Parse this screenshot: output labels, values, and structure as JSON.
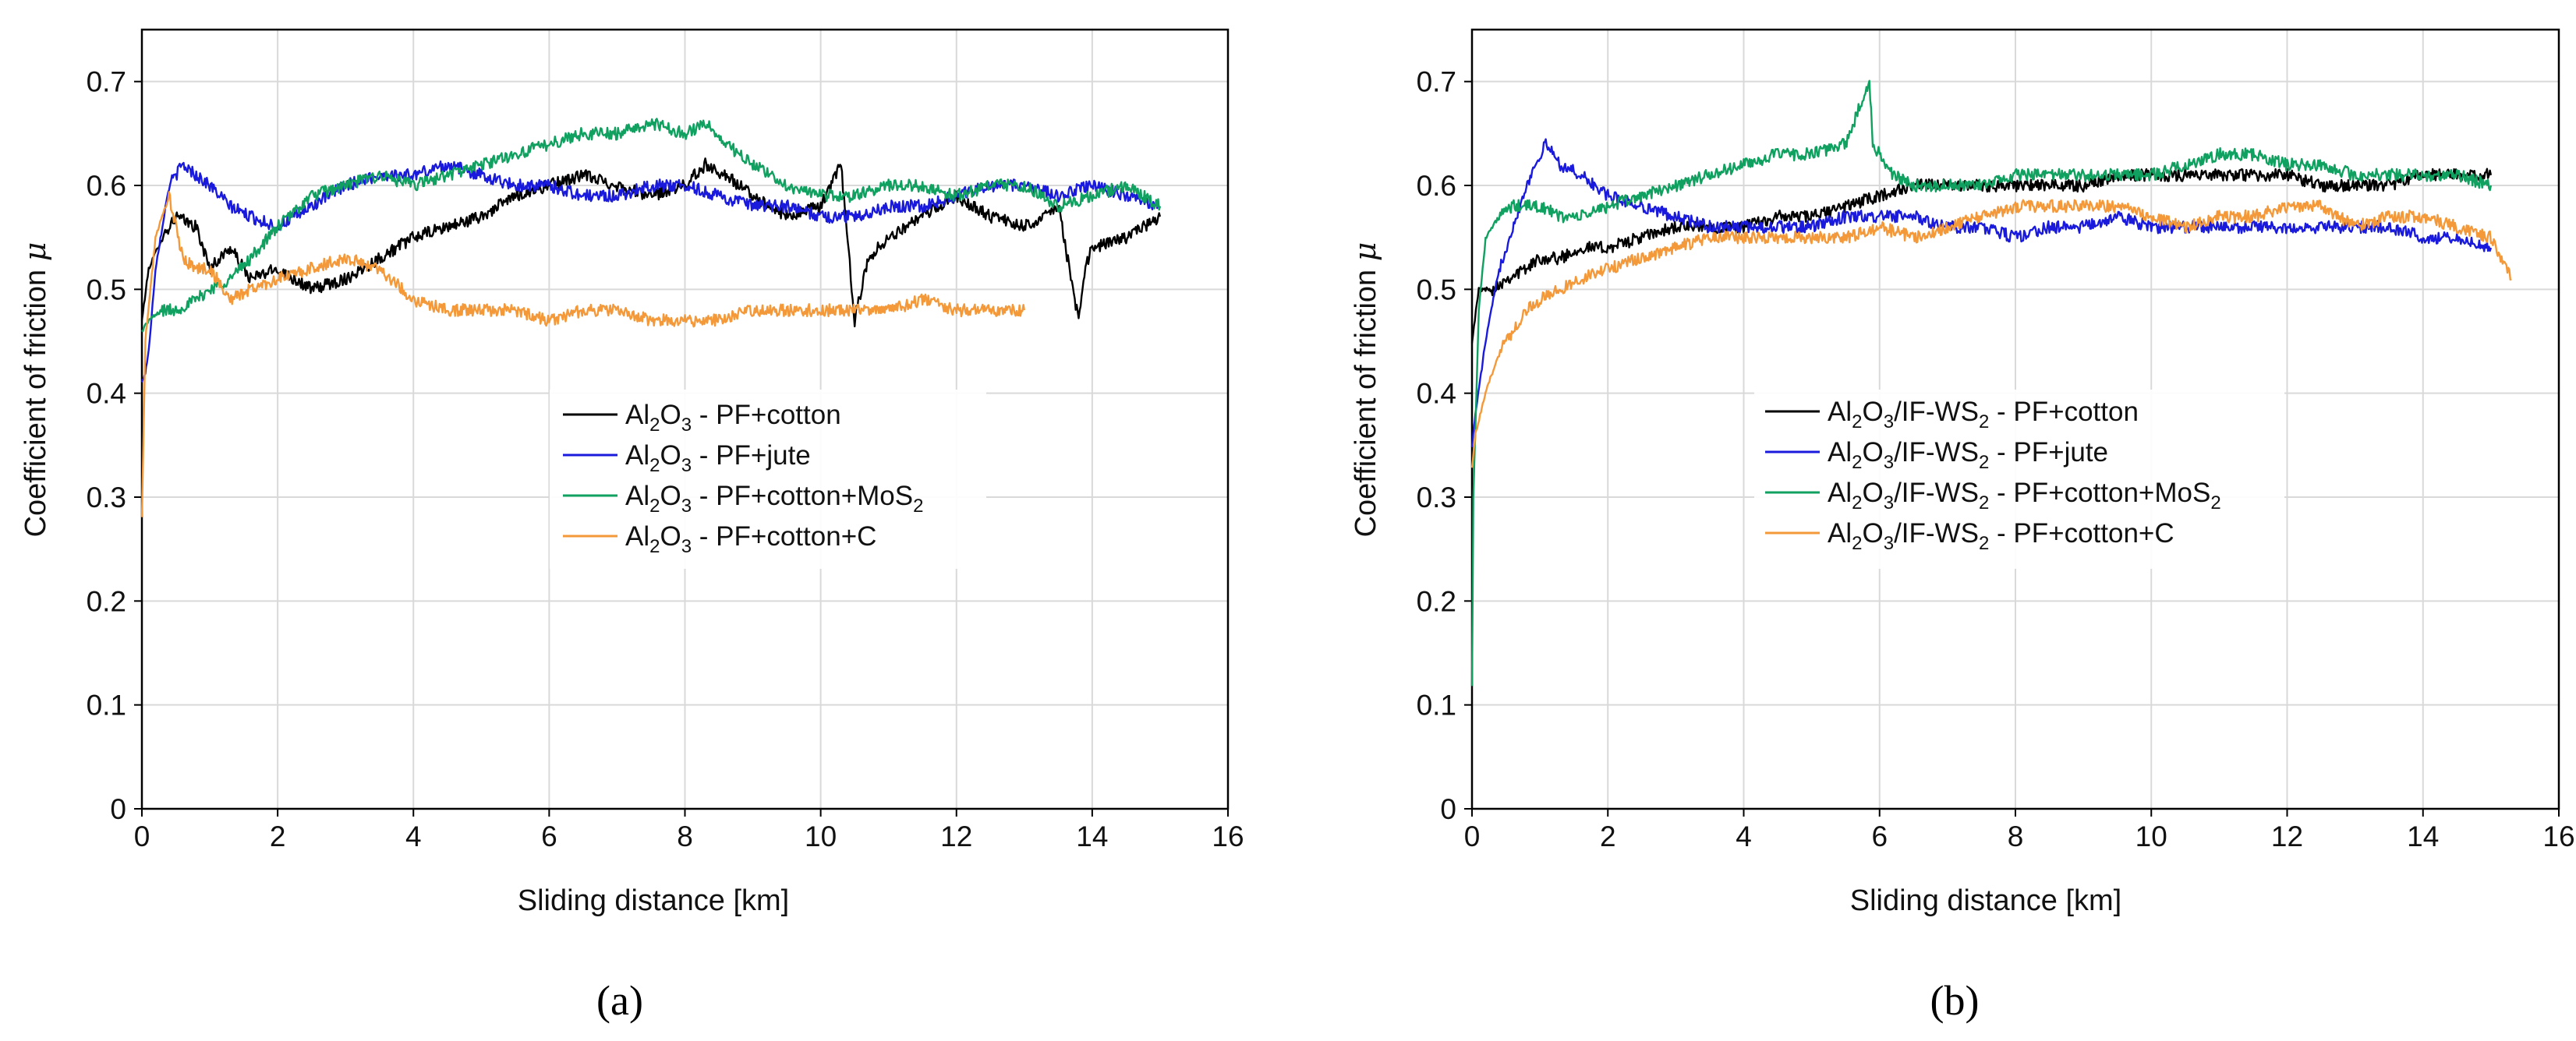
{
  "chart_data": [
    {
      "type": "line",
      "panel_label": "(a)",
      "xlabel": "Sliding distance [km]",
      "ylabel": "Coefficient of friction μ",
      "xlim": [
        0,
        16
      ],
      "ylim": [
        0,
        0.75
      ],
      "xticks": [
        "0",
        "2",
        "4",
        "6",
        "8",
        "10",
        "12",
        "14",
        "16"
      ],
      "yticks": [
        "0",
        "0.1",
        "0.2",
        "0.3",
        "0.4",
        "0.5",
        "0.6",
        "0.7"
      ],
      "grid": true,
      "legend_position": "center",
      "series": [
        {
          "name": "Al2O3 - PF+cotton",
          "color": "#000000",
          "x": [
            0,
            0.1,
            0.3,
            0.5,
            0.8,
            1.0,
            1.3,
            1.6,
            2.0,
            2.5,
            3.0,
            3.5,
            4.0,
            4.5,
            5.0,
            5.5,
            6.0,
            6.5,
            7.0,
            7.5,
            8.0,
            8.3,
            8.6,
            9.0,
            9.5,
            10.0,
            10.3,
            10.5,
            10.7,
            11.0,
            11.5,
            12.0,
            12.5,
            13.0,
            13.5,
            13.8,
            13.9,
            14.0,
            14.5,
            15.0
          ],
          "y": [
            0.47,
            0.52,
            0.55,
            0.57,
            0.56,
            0.52,
            0.54,
            0.51,
            0.52,
            0.5,
            0.51,
            0.53,
            0.55,
            0.56,
            0.57,
            0.59,
            0.6,
            0.61,
            0.6,
            0.59,
            0.6,
            0.62,
            0.61,
            0.59,
            0.57,
            0.58,
            0.62,
            0.47,
            0.53,
            0.55,
            0.57,
            0.59,
            0.57,
            0.56,
            0.58,
            0.47,
            0.52,
            0.54,
            0.55,
            0.57
          ]
        },
        {
          "name": "Al2O3 - PF+jute",
          "color": "#1a1adc",
          "x": [
            0,
            0.05,
            0.1,
            0.2,
            0.4,
            0.6,
            0.8,
            1.0,
            1.3,
            1.6,
            2.0,
            2.5,
            3.0,
            3.5,
            4.0,
            4.5,
            5.0,
            5.5,
            6.0,
            6.5,
            7.0,
            7.5,
            8.0,
            8.5,
            9.0,
            9.5,
            10.0,
            10.5,
            11.0,
            11.5,
            12.0,
            12.5,
            13.0,
            13.5,
            14.0,
            14.5,
            15.0
          ],
          "y": [
            0.41,
            0.42,
            0.44,
            0.52,
            0.6,
            0.62,
            0.61,
            0.6,
            0.58,
            0.57,
            0.56,
            0.58,
            0.6,
            0.61,
            0.61,
            0.62,
            0.61,
            0.6,
            0.6,
            0.59,
            0.59,
            0.6,
            0.6,
            0.59,
            0.58,
            0.58,
            0.57,
            0.57,
            0.58,
            0.58,
            0.59,
            0.6,
            0.6,
            0.59,
            0.6,
            0.59,
            0.58
          ]
        },
        {
          "name": "Al2O3 - PF+cotton+MoS2",
          "color": "#10a060",
          "x": [
            0,
            0.1,
            0.3,
            0.5,
            0.8,
            1.0,
            1.3,
            1.6,
            2.0,
            2.5,
            3.0,
            3.5,
            4.0,
            4.5,
            5.0,
            5.5,
            6.0,
            6.5,
            7.0,
            7.5,
            8.0,
            8.3,
            8.6,
            9.0,
            9.5,
            10.0,
            10.5,
            11.0,
            11.5,
            12.0,
            12.5,
            13.0,
            13.5,
            14.0,
            14.5,
            15.0
          ],
          "y": [
            0.46,
            0.47,
            0.48,
            0.48,
            0.49,
            0.5,
            0.51,
            0.53,
            0.56,
            0.59,
            0.6,
            0.61,
            0.6,
            0.61,
            0.62,
            0.63,
            0.64,
            0.65,
            0.65,
            0.66,
            0.65,
            0.66,
            0.64,
            0.62,
            0.6,
            0.59,
            0.59,
            0.6,
            0.6,
            0.59,
            0.6,
            0.6,
            0.58,
            0.59,
            0.6,
            0.58
          ]
        },
        {
          "name": "Al2O3 - PF+cotton+C",
          "color": "#f4993a",
          "x": [
            0,
            0.05,
            0.2,
            0.4,
            0.6,
            0.8,
            1.0,
            1.3,
            1.6,
            2.0,
            2.5,
            3.0,
            3.5,
            4.0,
            4.5,
            5.0,
            5.5,
            6.0,
            6.5,
            7.0,
            7.5,
            8.0,
            8.5,
            9.0,
            9.5,
            10.0,
            10.5,
            11.0,
            11.5,
            12.0,
            12.5,
            13.0
          ],
          "y": [
            0.28,
            0.45,
            0.55,
            0.59,
            0.53,
            0.52,
            0.52,
            0.49,
            0.5,
            0.51,
            0.52,
            0.53,
            0.52,
            0.49,
            0.48,
            0.48,
            0.48,
            0.47,
            0.48,
            0.48,
            0.47,
            0.47,
            0.47,
            0.48,
            0.48,
            0.48,
            0.48,
            0.48,
            0.49,
            0.48,
            0.48,
            0.48
          ]
        }
      ]
    },
    {
      "type": "line",
      "panel_label": "(b)",
      "xlabel": "Sliding distance [km]",
      "ylabel": "Coefficient of friction μ",
      "xlim": [
        0,
        16
      ],
      "ylim": [
        0,
        0.75
      ],
      "xticks": [
        "0",
        "2",
        "4",
        "6",
        "8",
        "10",
        "12",
        "14",
        "16"
      ],
      "yticks": [
        "0",
        "0.1",
        "0.2",
        "0.3",
        "0.4",
        "0.5",
        "0.6",
        "0.7"
      ],
      "grid": true,
      "legend_position": "center",
      "series": [
        {
          "name": "Al2O3/IF-WS2 - PF+cotton",
          "color": "#000000",
          "x": [
            0,
            0.1,
            0.3,
            0.5,
            0.8,
            1.0,
            1.3,
            1.6,
            2.0,
            2.5,
            3.0,
            3.5,
            4.0,
            4.5,
            5.0,
            5.5,
            6.0,
            6.5,
            7.0,
            7.5,
            8.0,
            8.5,
            9.0,
            9.5,
            10.0,
            10.5,
            11.0,
            11.5,
            12.0,
            12.5,
            13.0,
            13.5,
            14.0,
            14.5,
            15.0
          ],
          "y": [
            0.45,
            0.5,
            0.5,
            0.51,
            0.52,
            0.53,
            0.53,
            0.54,
            0.54,
            0.55,
            0.56,
            0.56,
            0.56,
            0.57,
            0.57,
            0.58,
            0.59,
            0.6,
            0.6,
            0.6,
            0.6,
            0.6,
            0.6,
            0.61,
            0.61,
            0.61,
            0.61,
            0.61,
            0.61,
            0.6,
            0.6,
            0.6,
            0.61,
            0.61,
            0.61
          ]
        },
        {
          "name": "Al2O3/IF-WS2 - PF+jute",
          "color": "#1a1adc",
          "x": [
            0,
            0.05,
            0.2,
            0.4,
            0.6,
            0.8,
            1.0,
            1.1,
            1.3,
            1.6,
            2.0,
            2.5,
            3.0,
            3.5,
            4.0,
            4.5,
            5.0,
            5.5,
            6.0,
            6.5,
            7.0,
            7.5,
            8.0,
            8.5,
            9.0,
            9.5,
            10.0,
            10.5,
            11.0,
            11.5,
            12.0,
            12.5,
            13.0,
            13.5,
            14.0,
            14.5,
            15.0
          ],
          "y": [
            0.35,
            0.38,
            0.45,
            0.52,
            0.56,
            0.6,
            0.63,
            0.64,
            0.62,
            0.61,
            0.59,
            0.58,
            0.57,
            0.56,
            0.56,
            0.56,
            0.56,
            0.57,
            0.57,
            0.57,
            0.56,
            0.56,
            0.55,
            0.56,
            0.56,
            0.57,
            0.56,
            0.56,
            0.56,
            0.56,
            0.56,
            0.56,
            0.56,
            0.56,
            0.55,
            0.55,
            0.54
          ]
        },
        {
          "name": "Al2O3/IF-WS2 - PF+cotton+MoS2",
          "color": "#10a060",
          "x": [
            0,
            0.02,
            0.1,
            0.2,
            0.4,
            0.6,
            0.8,
            1.0,
            1.3,
            1.6,
            2.0,
            2.5,
            3.0,
            3.5,
            4.0,
            4.5,
            5.0,
            5.5,
            5.85,
            5.9,
            6.2,
            6.5,
            7.0,
            7.5,
            8.0,
            8.5,
            9.0,
            9.5,
            10.0,
            10.5,
            11.0,
            11.5,
            12.0,
            12.5,
            13.0,
            13.5,
            14.0,
            14.5,
            15.0
          ],
          "y": [
            0.12,
            0.3,
            0.48,
            0.55,
            0.57,
            0.58,
            0.58,
            0.58,
            0.57,
            0.57,
            0.58,
            0.59,
            0.6,
            0.61,
            0.62,
            0.63,
            0.63,
            0.64,
            0.7,
            0.64,
            0.61,
            0.6,
            0.6,
            0.6,
            0.61,
            0.61,
            0.61,
            0.61,
            0.61,
            0.62,
            0.63,
            0.63,
            0.62,
            0.62,
            0.61,
            0.61,
            0.61,
            0.61,
            0.6
          ]
        },
        {
          "name": "Al2O3/IF-WS2 - PF+cotton+C",
          "color": "#f4993a",
          "x": [
            0,
            0.05,
            0.2,
            0.4,
            0.6,
            0.8,
            1.0,
            1.3,
            1.6,
            2.0,
            2.5,
            3.0,
            3.5,
            4.0,
            4.5,
            5.0,
            5.5,
            6.0,
            6.5,
            7.0,
            7.5,
            8.0,
            8.5,
            9.0,
            9.5,
            10.0,
            10.5,
            11.0,
            11.5,
            12.0,
            12.5,
            13.0,
            13.5,
            14.0,
            14.5,
            15.0,
            15.3
          ],
          "y": [
            0.33,
            0.36,
            0.4,
            0.44,
            0.46,
            0.48,
            0.49,
            0.5,
            0.51,
            0.52,
            0.53,
            0.54,
            0.55,
            0.55,
            0.55,
            0.55,
            0.55,
            0.56,
            0.55,
            0.56,
            0.57,
            0.58,
            0.58,
            0.58,
            0.58,
            0.57,
            0.56,
            0.57,
            0.57,
            0.58,
            0.58,
            0.56,
            0.57,
            0.57,
            0.56,
            0.55,
            0.51
          ]
        }
      ]
    }
  ]
}
